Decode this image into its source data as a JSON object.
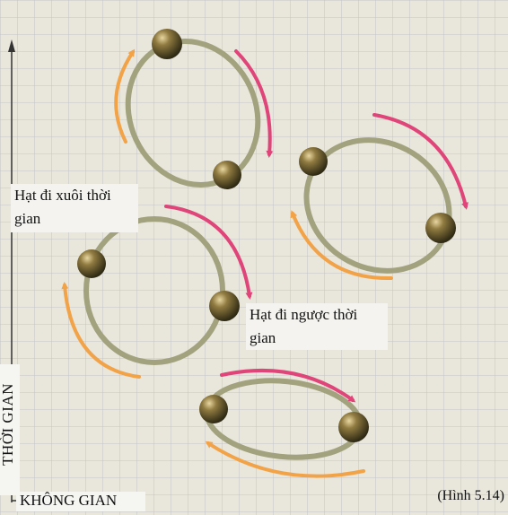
{
  "labels": {
    "forward": "Hạt đi xuôi thời gian",
    "backward": "Hạt đi ngược thời gian"
  },
  "axes": {
    "time": "THỜI GIAN",
    "space": "KHÔNG GIAN"
  },
  "caption": "(Hình 5.14)",
  "colors": {
    "grid_background": "#e9e6dc",
    "grid_lines": "#b9bcc4",
    "loop_ring": "#a2a27e",
    "forward_arrow": "#e0457a",
    "backward_arrow": "#f2a247",
    "particle": "#8f7a40"
  }
}
